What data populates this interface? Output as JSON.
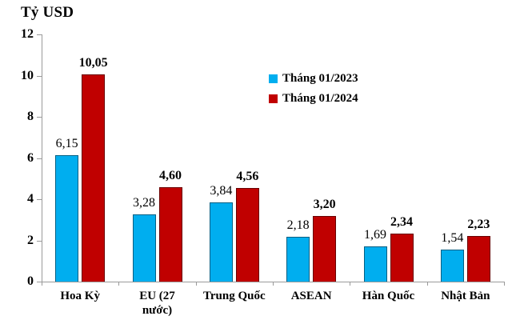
{
  "title": "Tỷ USD",
  "legend": {
    "items": [
      {
        "label": "Tháng 01/2023",
        "color": "#00AEEF"
      },
      {
        "label": "Tháng 01/2024",
        "color": "#C00000"
      }
    ]
  },
  "axes": {
    "y_tick_labels": [
      "0",
      "2",
      "4",
      "6",
      "8",
      "10",
      "12"
    ],
    "axis_color": "#9a9a9a"
  },
  "chart_data": {
    "type": "bar",
    "title": "Tỷ USD",
    "ylabel": "Tỷ USD",
    "xlabel": "",
    "ylim": [
      0,
      12
    ],
    "yticks": [
      0,
      2,
      4,
      6,
      8,
      10,
      12
    ],
    "grid": false,
    "legend_position": "upper-center-right",
    "categories": [
      "Hoa Kỳ",
      "EU (27 nước)",
      "Trung Quốc",
      "ASEAN",
      "Hàn Quốc",
      "Nhật Bản"
    ],
    "series": [
      {
        "name": "Tháng 01/2023",
        "color": "#00AEEF",
        "values": [
          6.15,
          3.28,
          3.84,
          2.18,
          1.69,
          1.54
        ],
        "value_labels": [
          "6,15",
          "3,28",
          "3,84",
          "2,18",
          "1,69",
          "1,54"
        ]
      },
      {
        "name": "Tháng 01/2024",
        "color": "#C00000",
        "values": [
          10.05,
          4.6,
          4.56,
          3.2,
          2.34,
          2.23
        ],
        "value_labels": [
          "10,05",
          "4,60",
          "4,56",
          "3,20",
          "2,34",
          "2,23"
        ]
      }
    ]
  }
}
